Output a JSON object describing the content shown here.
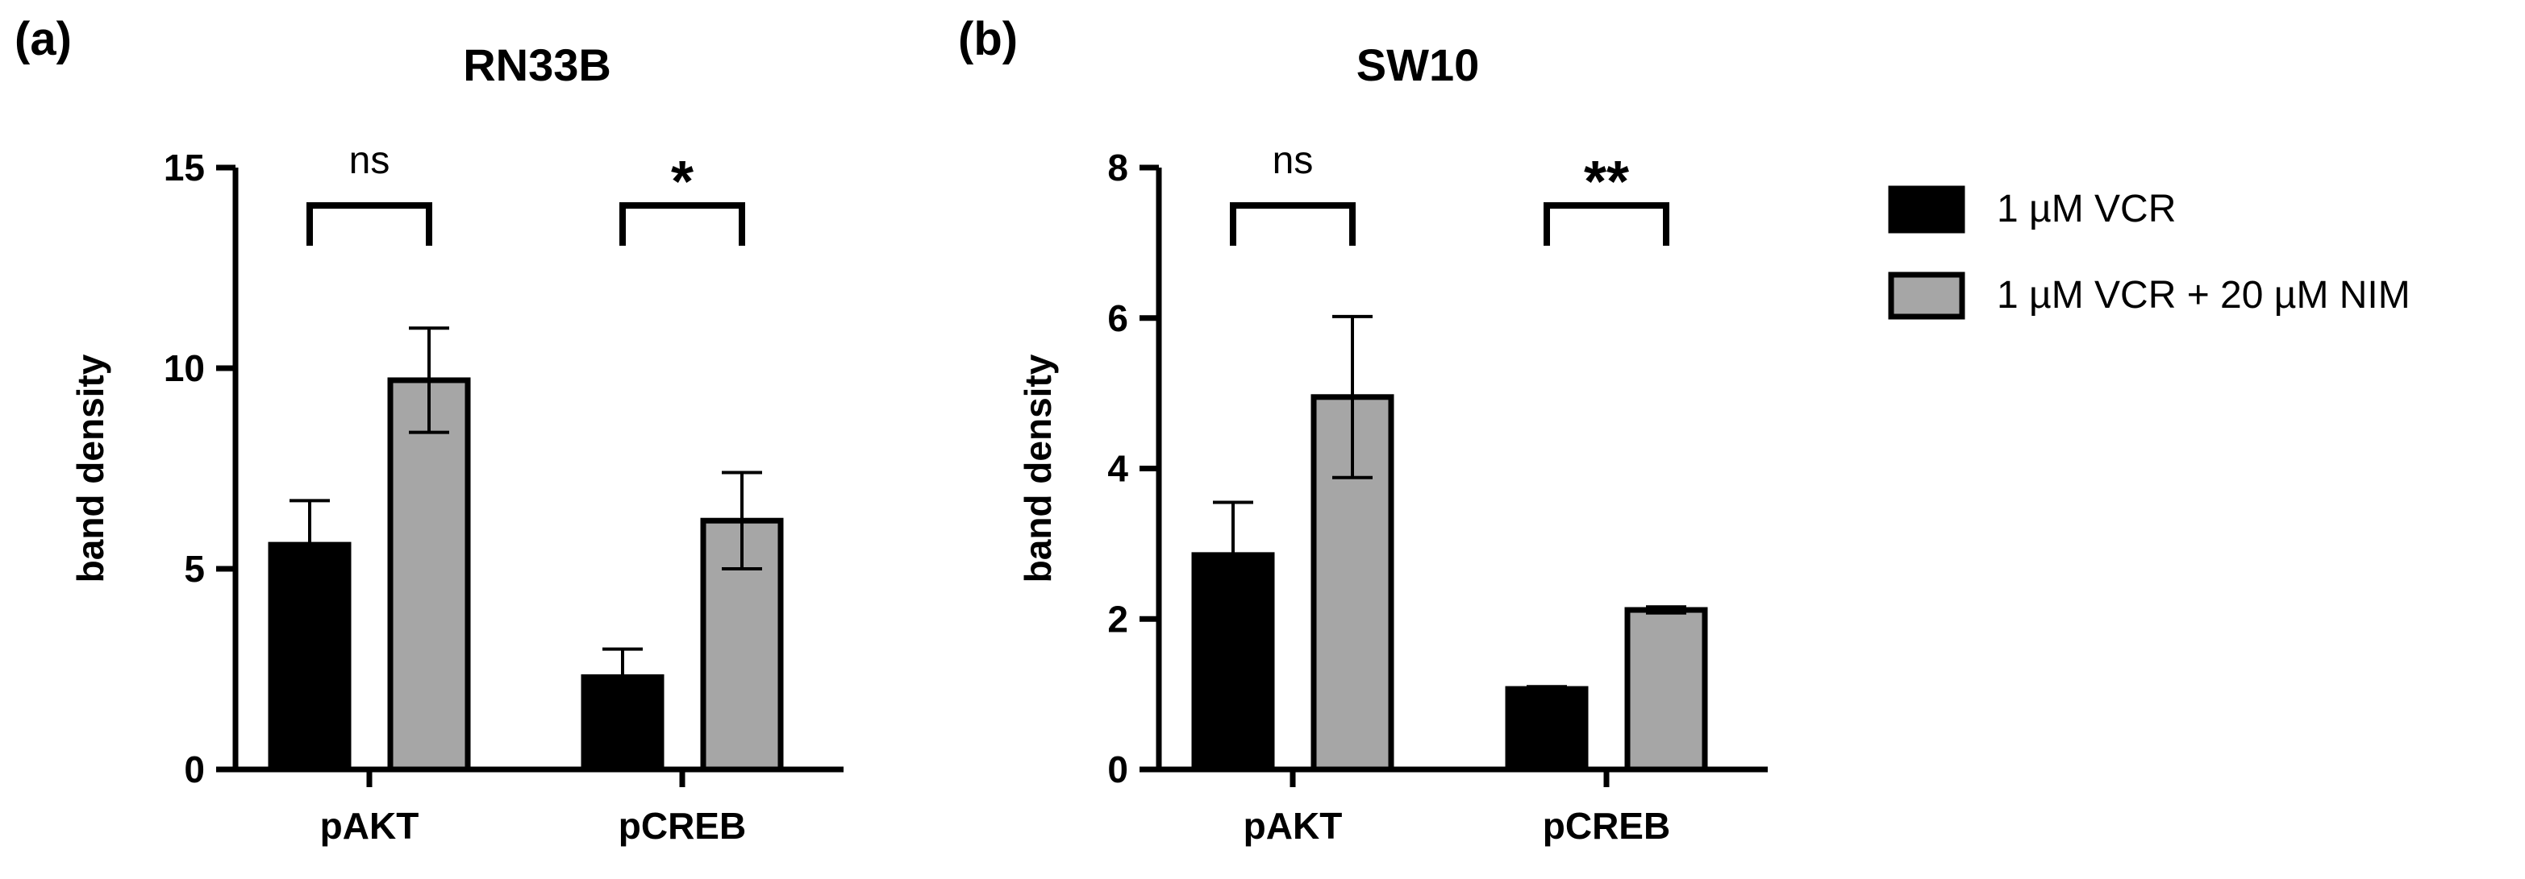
{
  "chart_data": [
    {
      "panel_label": "(a)",
      "type": "bar",
      "title": "RN33B",
      "ylabel": "band density",
      "xlabel": "",
      "ylim": [
        0,
        15
      ],
      "yticks": [
        "0",
        "5",
        "10",
        "15"
      ],
      "categories": [
        "pAKT",
        "pCREB"
      ],
      "series": [
        {
          "name": "1 µM VCR",
          "values": [
            5.6,
            2.3
          ],
          "errors": [
            1.1,
            0.7
          ]
        },
        {
          "name": "1 µM VCR + 20 µM NIM",
          "values": [
            9.7,
            6.2
          ],
          "errors": [
            1.3,
            1.2
          ]
        }
      ],
      "significance": [
        "ns",
        "*"
      ],
      "grid": false
    },
    {
      "panel_label": "(b)",
      "type": "bar",
      "title": "SW10",
      "ylabel": "band density",
      "xlabel": "",
      "ylim": [
        0,
        8
      ],
      "yticks": [
        "0",
        "2",
        "4",
        "6",
        "8"
      ],
      "categories": [
        "pAKT",
        "pCREB"
      ],
      "series": [
        {
          "name": "1 µM VCR",
          "values": [
            2.85,
            1.07
          ],
          "errors": [
            0.7,
            0.03
          ]
        },
        {
          "name": "1 µM VCR + 20 µM NIM",
          "values": [
            4.95,
            2.12
          ],
          "errors": [
            1.07,
            0.04
          ]
        }
      ],
      "significance": [
        "ns",
        "**"
      ],
      "grid": false
    }
  ],
  "legend": {
    "placement": "right",
    "entries": [
      "1 µM VCR",
      "1 µM VCR + 20 µM NIM"
    ]
  },
  "colors": {
    "series_1": "#000000",
    "series_2": "#a6a6a6",
    "outline": "#000000"
  }
}
